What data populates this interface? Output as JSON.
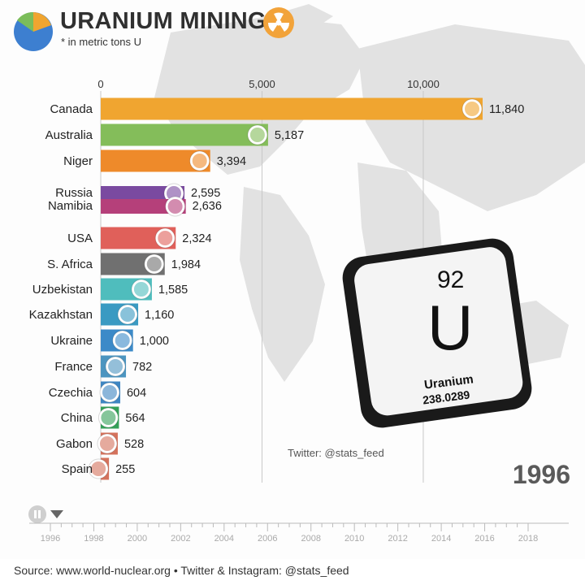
{
  "header": {
    "title": "URANIUM MINING",
    "subtitle": "* in metric tons U"
  },
  "chart_data": {
    "type": "bar",
    "orientation": "horizontal",
    "title": "URANIUM MINING",
    "subtitle": "* in metric tons U",
    "xlim": [
      0,
      11840
    ],
    "xticks": [
      0,
      5000,
      10000
    ],
    "xtick_labels": [
      "0",
      "5,000",
      "10,000"
    ],
    "grid": true,
    "categories": [
      "Canada",
      "Australia",
      "Niger",
      "Russia",
      "Namibia",
      "USA",
      "S. Africa",
      "Uzbekistan",
      "Kazakhstan",
      "Ukraine",
      "France",
      "Czechia",
      "China",
      "Gabon",
      "Spain"
    ],
    "values": [
      11840,
      5187,
      3394,
      2595,
      2636,
      2324,
      1984,
      1585,
      1160,
      1000,
      782,
      604,
      564,
      528,
      255
    ],
    "value_labels": [
      "11,840",
      "5,187",
      "3,394",
      "2,595",
      "2,636",
      "2,324",
      "1,984",
      "1,585",
      "1,160",
      "1,000",
      "782",
      "604",
      "564",
      "528",
      "255"
    ],
    "colors": [
      "#f0a530",
      "#84bd5a",
      "#ee8a2a",
      "#7a4aa0",
      "#b5407a",
      "#e0605a",
      "#707070",
      "#4fbdbd",
      "#3a9ac2",
      "#3c8ac8",
      "#4c95c0",
      "#3e86c2",
      "#34a058",
      "#d4725c",
      "#d4725c"
    ],
    "year": "1996"
  },
  "element": {
    "number": "92",
    "symbol": "U",
    "name": "Uranium",
    "mass": "238.0289"
  },
  "credit": "Twitter: @stats_feed",
  "timeline": {
    "years": [
      "1996",
      "1998",
      "2000",
      "2002",
      "2004",
      "2006",
      "2008",
      "2010",
      "2012",
      "2014",
      "2016",
      "2018"
    ],
    "current": "1996"
  },
  "footer": {
    "source": "Source: www.world-nuclear.org • Twitter & Instagram: @stats_feed"
  }
}
